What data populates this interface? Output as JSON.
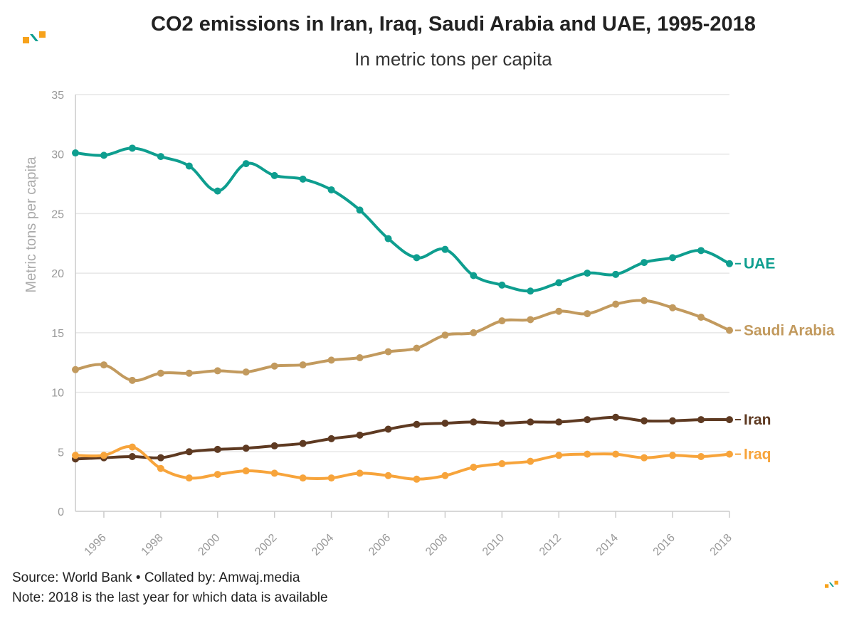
{
  "header": {
    "title": "CO2 emissions in Iran, Iraq, Saudi Arabia and UAE, 1995-2018",
    "subtitle": "In metric tons per capita"
  },
  "footer": {
    "source": "Source: World Bank • Collated by: Amwaj.media",
    "note": "Note: 2018 is the last year for which data is available"
  },
  "logo": {
    "name": "amwaj-logo-icon",
    "colors": [
      "#f7a21b",
      "#0e9e8f"
    ]
  },
  "chart_data": {
    "type": "line",
    "title": "CO2 emissions in Iran, Iraq, Saudi Arabia and UAE, 1995-2018",
    "subtitle": "In metric tons per capita",
    "xlabel": "",
    "ylabel": "Metric tons per capita",
    "x": [
      1995,
      1996,
      1997,
      1998,
      1999,
      2000,
      2001,
      2002,
      2003,
      2004,
      2005,
      2006,
      2007,
      2008,
      2009,
      2010,
      2011,
      2012,
      2013,
      2014,
      2015,
      2016,
      2017,
      2018
    ],
    "xticks": [
      1996,
      1998,
      2000,
      2002,
      2004,
      2006,
      2008,
      2010,
      2012,
      2014,
      2016,
      2018
    ],
    "yticks": [
      0,
      5,
      10,
      15,
      20,
      25,
      30,
      35
    ],
    "ylim": [
      0,
      35
    ],
    "xlim": [
      1995,
      2018
    ],
    "grid": true,
    "series": [
      {
        "name": "UAE",
        "color": "#0e9e8f",
        "values": [
          30.1,
          29.9,
          30.5,
          29.8,
          29.0,
          26.9,
          29.2,
          28.2,
          27.9,
          27.0,
          25.3,
          22.9,
          21.3,
          22.0,
          19.8,
          19.0,
          18.5,
          19.2,
          20.0,
          19.9,
          20.9,
          21.3,
          21.9,
          20.8
        ]
      },
      {
        "name": "Saudi Arabia",
        "color": "#c29a5e",
        "values": [
          11.9,
          12.3,
          11.0,
          11.6,
          11.6,
          11.8,
          11.7,
          12.2,
          12.3,
          12.7,
          12.9,
          13.4,
          13.7,
          14.8,
          15.0,
          16.0,
          16.1,
          16.8,
          16.6,
          17.4,
          17.7,
          17.1,
          16.3,
          15.2
        ]
      },
      {
        "name": "Iran",
        "color": "#5e3a22",
        "values": [
          4.4,
          4.5,
          4.6,
          4.5,
          5.0,
          5.2,
          5.3,
          5.5,
          5.7,
          6.1,
          6.4,
          6.9,
          7.3,
          7.4,
          7.5,
          7.4,
          7.5,
          7.5,
          7.7,
          7.9,
          7.6,
          7.6,
          7.7,
          7.7
        ]
      },
      {
        "name": "Iraq",
        "color": "#f7a43b",
        "values": [
          4.7,
          4.7,
          5.4,
          3.6,
          2.8,
          3.1,
          3.4,
          3.2,
          2.8,
          2.8,
          3.2,
          3.0,
          2.7,
          3.0,
          3.7,
          4.0,
          4.2,
          4.7,
          4.8,
          4.8,
          4.5,
          4.7,
          4.6,
          4.8
        ]
      }
    ]
  }
}
